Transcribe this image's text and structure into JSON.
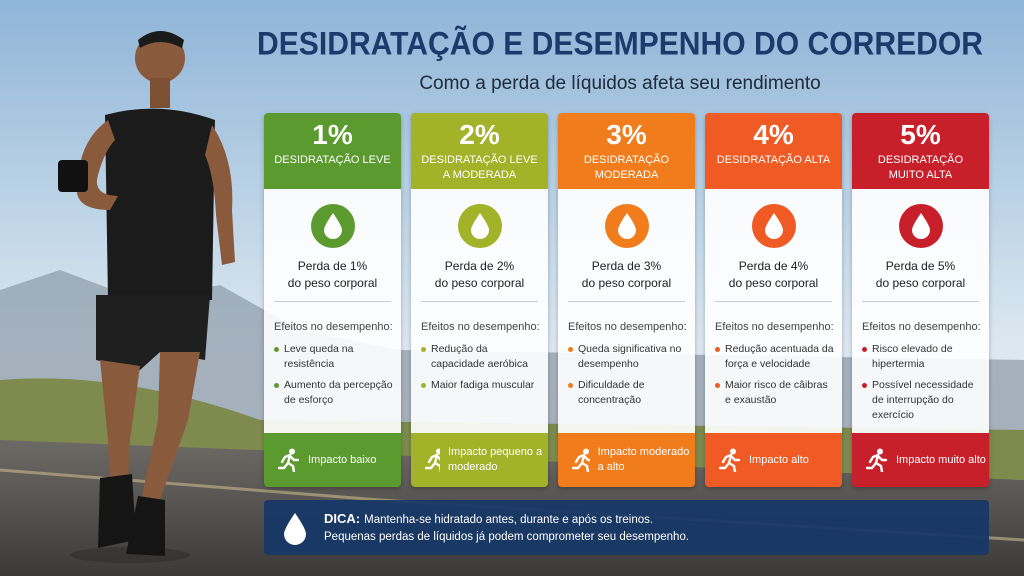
{
  "header": {
    "title": "DESIDRATAÇÃO E DESEMPENHO DO CORREDOR",
    "subtitle": "Como a perda de líquidos afeta seu rendimento"
  },
  "cards": [
    {
      "percent": "1%",
      "level": "DESIDRATAÇÃO LEVE",
      "color": "#5b9a2f",
      "loss": [
        "Perda de 1%",
        "do peso corporal"
      ],
      "effects_title": "Efeitos no desempenho:",
      "effects": [
        "Leve queda na resistência",
        "Aumento da percepção de esforço"
      ],
      "impact": "Impacto baixo"
    },
    {
      "percent": "2%",
      "level": "DESIDRATAÇÃO LEVE A MODERADA",
      "color": "#a2b229",
      "loss": [
        "Perda de 2%",
        "do peso corporal"
      ],
      "effects_title": "Efeitos no desempenho:",
      "effects": [
        "Redução da capacidade aeróbica",
        "Maior fadiga muscular"
      ],
      "impact": "Impacto pequeno a moderado"
    },
    {
      "percent": "3%",
      "level": "DESIDRATAÇÃO MODERADA",
      "color": "#f07c1c",
      "loss": [
        "Perda de 3%",
        "do peso corporal"
      ],
      "effects_title": "Efeitos no desempenho:",
      "effects": [
        "Queda significativa no desempenho",
        "Dificuldade de concentração"
      ],
      "impact": "Impacto moderado a alto"
    },
    {
      "percent": "4%",
      "level": "DESIDRATAÇÃO ALTA",
      "color": "#f05a24",
      "loss": [
        "Perda de 4%",
        "do peso corporal"
      ],
      "effects_title": "Efeitos no desempenho:",
      "effects": [
        "Redução acentuada da força e velocidade",
        "Maior risco de câibras e exaustão"
      ],
      "impact": "Impacto alto"
    },
    {
      "percent": "5%",
      "level": "DESIDRATAÇÃO MUITO ALTA",
      "color": "#c8202b",
      "loss": [
        "Perda de 5%",
        "do peso corporal"
      ],
      "effects_title": "Efeitos no desempenho:",
      "effects": [
        "Risco elevado de hipertermia",
        "Possível necessidade de interrupção do exercício"
      ],
      "impact": "Impacto muito alto"
    }
  ],
  "tip": {
    "label": "DICA:",
    "lines": [
      "Mantenha-se hidratado antes, durante e após os treinos.",
      "Pequenas perdas de líquidos já podem comprometer seu desempenho."
    ]
  }
}
